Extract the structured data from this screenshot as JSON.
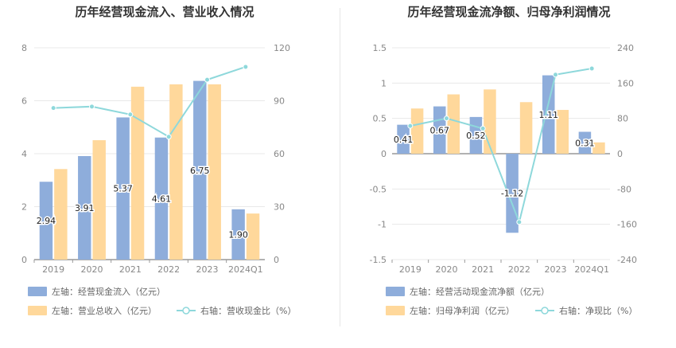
{
  "chart_data": [
    {
      "type": "bar",
      "title": "历年经营现金流入、营业收入情况",
      "categories": [
        "2019",
        "2020",
        "2021",
        "2022",
        "2023",
        "2024Q1"
      ],
      "left_axis": {
        "ylim": [
          0,
          8
        ],
        "ticks": [
          "0",
          "2",
          "4",
          "6",
          "8"
        ]
      },
      "right_axis": {
        "ylim": [
          0,
          120
        ],
        "ticks": [
          "0",
          "30",
          "60",
          "90",
          "120"
        ]
      },
      "series": [
        {
          "name": "左轴：经营现金流入（亿元）",
          "kind": "bar",
          "axis": "left",
          "color": "#8EADDB",
          "values": [
            2.94,
            3.91,
            5.37,
            4.61,
            6.75,
            1.9
          ],
          "labels": [
            "2.94",
            "3.91",
            "5.37",
            "4.61",
            "6.75",
            "1.90"
          ]
        },
        {
          "name": "左轴：营业总收入（亿元）",
          "kind": "bar",
          "axis": "left",
          "color": "#FFD89B",
          "values": [
            3.42,
            4.51,
            6.53,
            6.62,
            6.62,
            1.74
          ]
        },
        {
          "name": "右轴：营收现金比（%）",
          "kind": "line",
          "axis": "right",
          "color": "#8ED8DB",
          "values": [
            85.9,
            86.7,
            82.2,
            69.6,
            101.9,
            109.2
          ]
        }
      ],
      "legend_placement": "bottom"
    },
    {
      "type": "bar",
      "title": "历年经营现金流净额、归母净利润情况",
      "categories": [
        "2019",
        "2020",
        "2021",
        "2022",
        "2023",
        "2024Q1"
      ],
      "left_axis": {
        "ylim": [
          -1.5,
          1.5
        ],
        "ticks": [
          "-1.5",
          "-1",
          "-0.5",
          "0",
          "0.5",
          "1",
          "1.5"
        ]
      },
      "right_axis": {
        "ylim": [
          -240,
          240
        ],
        "ticks": [
          "-240",
          "-160",
          "-80",
          "0",
          "80",
          "160",
          "240"
        ]
      },
      "series": [
        {
          "name": "左轴：经营活动现金流净额（亿元）",
          "kind": "bar",
          "axis": "left",
          "color": "#8EADDB",
          "values": [
            0.41,
            0.67,
            0.52,
            -1.12,
            1.11,
            0.31
          ],
          "labels": [
            "0.41",
            "0.67",
            "0.52",
            "-1.12",
            "1.11",
            "0.31"
          ]
        },
        {
          "name": "左轴：归母净利润（亿元）",
          "kind": "bar",
          "axis": "left",
          "color": "#FFD89B",
          "values": [
            0.64,
            0.84,
            0.91,
            0.73,
            0.62,
            0.16
          ]
        },
        {
          "name": "右轴：净现比（%）",
          "kind": "line",
          "axis": "right",
          "color": "#8ED8DB",
          "values": [
            63,
            80,
            57,
            -155,
            179,
            193
          ]
        }
      ],
      "legend_placement": "bottom"
    }
  ]
}
